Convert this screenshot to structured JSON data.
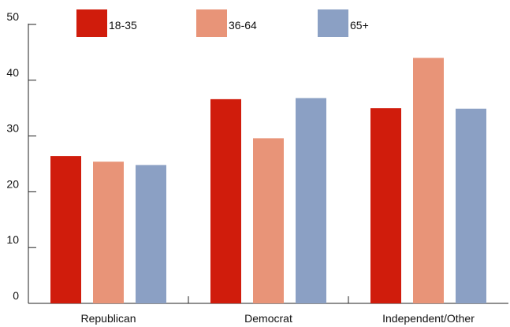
{
  "chart_data": {
    "type": "bar",
    "title": "",
    "xlabel": "",
    "ylabel": "",
    "categories": [
      "Republican",
      "Democrat",
      "Independent/Other"
    ],
    "series": [
      {
        "name": "18-35",
        "color": "#d01c0c",
        "values": [
          26.4,
          36.6,
          35.0
        ]
      },
      {
        "name": "36-64",
        "color": "#e89478",
        "values": [
          25.4,
          29.6,
          44.0
        ]
      },
      {
        "name": "65+",
        "color": "#8ba0c4",
        "values": [
          24.8,
          36.8,
          34.9
        ]
      }
    ],
    "ylim": [
      0,
      50
    ],
    "yticks": [
      0,
      10,
      20,
      30,
      40,
      50
    ],
    "grid": false,
    "legend_position": "top"
  }
}
